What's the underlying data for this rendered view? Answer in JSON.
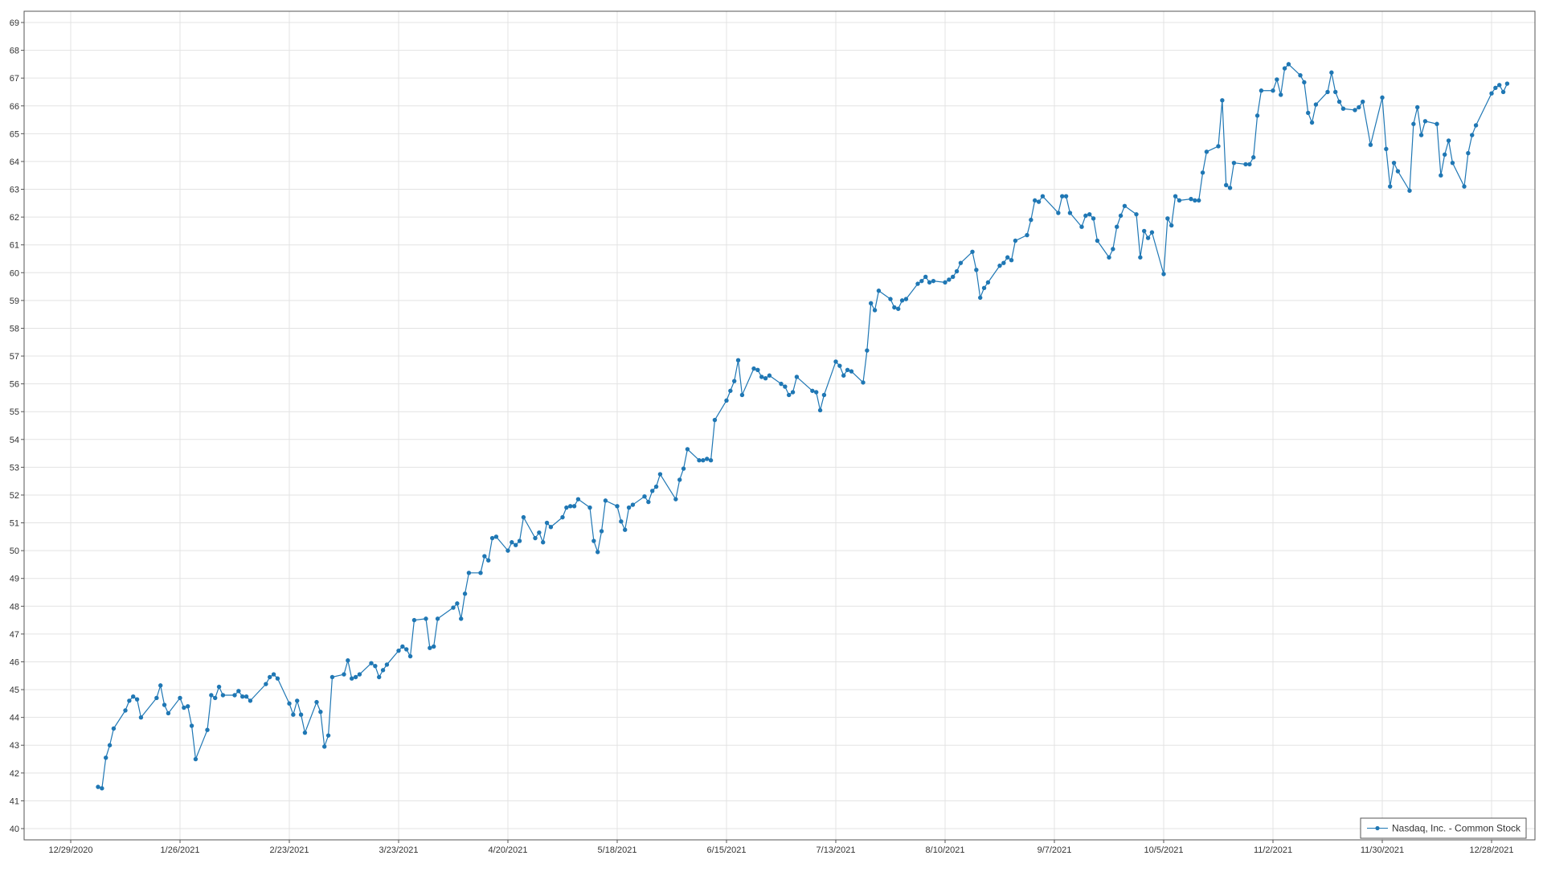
{
  "chart_data": {
    "type": "line",
    "title": "",
    "xlabel": "",
    "ylabel": "",
    "ylim": [
      40,
      69
    ],
    "xlim": [
      "2020-12-29",
      "2022-01-04"
    ],
    "y_ticks": [
      "40",
      "41",
      "42",
      "43",
      "44",
      "45",
      "46",
      "47",
      "48",
      "49",
      "50",
      "51",
      "52",
      "53",
      "54",
      "55",
      "56",
      "57",
      "58",
      "59",
      "60",
      "61",
      "62",
      "63",
      "64",
      "65",
      "66",
      "67",
      "68",
      "69"
    ],
    "x_ticks": [
      {
        "date": "2020-12-29",
        "label": "12/29/2020"
      },
      {
        "date": "2021-01-26",
        "label": "1/26/2021"
      },
      {
        "date": "2021-02-23",
        "label": "2/23/2021"
      },
      {
        "date": "2021-03-23",
        "label": "3/23/2021"
      },
      {
        "date": "2021-04-20",
        "label": "4/20/2021"
      },
      {
        "date": "2021-05-18",
        "label": "5/18/2021"
      },
      {
        "date": "2021-06-15",
        "label": "6/15/2021"
      },
      {
        "date": "2021-07-13",
        "label": "7/13/2021"
      },
      {
        "date": "2021-08-10",
        "label": "8/10/2021"
      },
      {
        "date": "2021-09-07",
        "label": "9/7/2021"
      },
      {
        "date": "2021-10-05",
        "label": "10/5/2021"
      },
      {
        "date": "2021-11-02",
        "label": "11/2/2021"
      },
      {
        "date": "2021-11-30",
        "label": "11/30/2021"
      },
      {
        "date": "2021-12-28",
        "label": "12/28/2021"
      }
    ],
    "grid": true,
    "legend_position": "bottom-right",
    "series": [
      {
        "name": "Nasdaq, Inc. - Common Stock",
        "color": "#1f77b4",
        "points": [
          [
            "2021-01-05",
            41.5
          ],
          [
            "2021-01-06",
            41.45
          ],
          [
            "2021-01-07",
            42.55
          ],
          [
            "2021-01-08",
            43.0
          ],
          [
            "2021-01-09",
            43.6
          ],
          [
            "2021-01-12",
            44.25
          ],
          [
            "2021-01-13",
            44.6
          ],
          [
            "2021-01-14",
            44.75
          ],
          [
            "2021-01-15",
            44.65
          ],
          [
            "2021-01-16",
            44.0
          ],
          [
            "2021-01-20",
            44.7
          ],
          [
            "2021-01-21",
            45.15
          ],
          [
            "2021-01-22",
            44.45
          ],
          [
            "2021-01-23",
            44.15
          ],
          [
            "2021-01-26",
            44.7
          ],
          [
            "2021-01-27",
            44.35
          ],
          [
            "2021-01-28",
            44.4
          ],
          [
            "2021-01-29",
            43.7
          ],
          [
            "2021-01-30",
            42.5
          ],
          [
            "2021-02-02",
            43.55
          ],
          [
            "2021-02-03",
            44.8
          ],
          [
            "2021-02-04",
            44.7
          ],
          [
            "2021-02-05",
            45.1
          ],
          [
            "2021-02-06",
            44.8
          ],
          [
            "2021-02-09",
            44.8
          ],
          [
            "2021-02-10",
            44.95
          ],
          [
            "2021-02-11",
            44.75
          ],
          [
            "2021-02-12",
            44.75
          ],
          [
            "2021-02-13",
            44.6
          ],
          [
            "2021-02-17",
            45.2
          ],
          [
            "2021-02-18",
            45.45
          ],
          [
            "2021-02-19",
            45.55
          ],
          [
            "2021-02-20",
            45.4
          ],
          [
            "2021-02-23",
            44.5
          ],
          [
            "2021-02-24",
            44.1
          ],
          [
            "2021-02-25",
            44.6
          ],
          [
            "2021-02-26",
            44.1
          ],
          [
            "2021-02-27",
            43.45
          ],
          [
            "2021-03-02",
            44.55
          ],
          [
            "2021-03-03",
            44.2
          ],
          [
            "2021-03-04",
            42.95
          ],
          [
            "2021-03-05",
            43.35
          ],
          [
            "2021-03-06",
            45.45
          ],
          [
            "2021-03-09",
            45.55
          ],
          [
            "2021-03-10",
            46.05
          ],
          [
            "2021-03-11",
            45.4
          ],
          [
            "2021-03-12",
            45.45
          ],
          [
            "2021-03-13",
            45.55
          ],
          [
            "2021-03-16",
            45.95
          ],
          [
            "2021-03-17",
            45.85
          ],
          [
            "2021-03-18",
            45.45
          ],
          [
            "2021-03-19",
            45.7
          ],
          [
            "2021-03-20",
            45.9
          ],
          [
            "2021-03-23",
            46.4
          ],
          [
            "2021-03-24",
            46.55
          ],
          [
            "2021-03-25",
            46.45
          ],
          [
            "2021-03-26",
            46.2
          ],
          [
            "2021-03-27",
            47.5
          ],
          [
            "2021-03-30",
            47.55
          ],
          [
            "2021-03-31",
            46.5
          ],
          [
            "2021-04-01",
            46.55
          ],
          [
            "2021-04-02",
            47.55
          ],
          [
            "2021-04-06",
            47.95
          ],
          [
            "2021-04-07",
            48.1
          ],
          [
            "2021-04-08",
            47.55
          ],
          [
            "2021-04-09",
            48.45
          ],
          [
            "2021-04-10",
            49.2
          ],
          [
            "2021-04-13",
            49.2
          ],
          [
            "2021-04-14",
            49.8
          ],
          [
            "2021-04-15",
            49.65
          ],
          [
            "2021-04-16",
            50.45
          ],
          [
            "2021-04-17",
            50.5
          ],
          [
            "2021-04-20",
            50.0
          ],
          [
            "2021-04-21",
            50.3
          ],
          [
            "2021-04-22",
            50.2
          ],
          [
            "2021-04-23",
            50.35
          ],
          [
            "2021-04-24",
            51.2
          ],
          [
            "2021-04-27",
            50.45
          ],
          [
            "2021-04-28",
            50.65
          ],
          [
            "2021-04-29",
            50.3
          ],
          [
            "2021-04-30",
            51.0
          ],
          [
            "2021-05-01",
            50.85
          ],
          [
            "2021-05-04",
            51.2
          ],
          [
            "2021-05-05",
            51.55
          ],
          [
            "2021-05-06",
            51.6
          ],
          [
            "2021-05-07",
            51.6
          ],
          [
            "2021-05-08",
            51.85
          ],
          [
            "2021-05-11",
            51.55
          ],
          [
            "2021-05-12",
            50.35
          ],
          [
            "2021-05-13",
            49.95
          ],
          [
            "2021-05-14",
            50.7
          ],
          [
            "2021-05-15",
            51.8
          ],
          [
            "2021-05-18",
            51.6
          ],
          [
            "2021-05-19",
            51.05
          ],
          [
            "2021-05-20",
            50.75
          ],
          [
            "2021-05-21",
            51.55
          ],
          [
            "2021-05-22",
            51.65
          ],
          [
            "2021-05-25",
            51.95
          ],
          [
            "2021-05-26",
            51.75
          ],
          [
            "2021-05-27",
            52.15
          ],
          [
            "2021-05-28",
            52.3
          ],
          [
            "2021-05-29",
            52.75
          ],
          [
            "2021-06-02",
            51.85
          ],
          [
            "2021-06-03",
            52.55
          ],
          [
            "2021-06-04",
            52.95
          ],
          [
            "2021-06-05",
            53.65
          ],
          [
            "2021-06-08",
            53.25
          ],
          [
            "2021-06-09",
            53.25
          ],
          [
            "2021-06-10",
            53.3
          ],
          [
            "2021-06-11",
            53.25
          ],
          [
            "2021-06-12",
            54.7
          ],
          [
            "2021-06-15",
            55.4
          ],
          [
            "2021-06-16",
            55.75
          ],
          [
            "2021-06-17",
            56.1
          ],
          [
            "2021-06-18",
            56.85
          ],
          [
            "2021-06-19",
            55.6
          ],
          [
            "2021-06-22",
            56.55
          ],
          [
            "2021-06-23",
            56.5
          ],
          [
            "2021-06-24",
            56.25
          ],
          [
            "2021-06-25",
            56.2
          ],
          [
            "2021-06-26",
            56.3
          ],
          [
            "2021-06-29",
            56.0
          ],
          [
            "2021-06-30",
            55.9
          ],
          [
            "2021-07-01",
            55.6
          ],
          [
            "2021-07-02",
            55.7
          ],
          [
            "2021-07-03",
            56.25
          ],
          [
            "2021-07-07",
            55.75
          ],
          [
            "2021-07-08",
            55.7
          ],
          [
            "2021-07-09",
            55.05
          ],
          [
            "2021-07-10",
            55.6
          ],
          [
            "2021-07-13",
            56.8
          ],
          [
            "2021-07-14",
            56.65
          ],
          [
            "2021-07-15",
            56.3
          ],
          [
            "2021-07-16",
            56.5
          ],
          [
            "2021-07-17",
            56.45
          ],
          [
            "2021-07-20",
            56.05
          ],
          [
            "2021-07-21",
            57.2
          ],
          [
            "2021-07-22",
            58.9
          ],
          [
            "2021-07-23",
            58.65
          ],
          [
            "2021-07-24",
            59.35
          ],
          [
            "2021-07-27",
            59.05
          ],
          [
            "2021-07-28",
            58.75
          ],
          [
            "2021-07-29",
            58.7
          ],
          [
            "2021-07-30",
            59.0
          ],
          [
            "2021-07-31",
            59.05
          ],
          [
            "2021-08-03",
            59.6
          ],
          [
            "2021-08-04",
            59.7
          ],
          [
            "2021-08-05",
            59.85
          ],
          [
            "2021-08-06",
            59.65
          ],
          [
            "2021-08-07",
            59.7
          ],
          [
            "2021-08-10",
            59.65
          ],
          [
            "2021-08-11",
            59.75
          ],
          [
            "2021-08-12",
            59.85
          ],
          [
            "2021-08-13",
            60.05
          ],
          [
            "2021-08-14",
            60.35
          ],
          [
            "2021-08-17",
            60.75
          ],
          [
            "2021-08-18",
            60.1
          ],
          [
            "2021-08-19",
            59.1
          ],
          [
            "2021-08-20",
            59.45
          ],
          [
            "2021-08-21",
            59.65
          ],
          [
            "2021-08-24",
            60.25
          ],
          [
            "2021-08-25",
            60.35
          ],
          [
            "2021-08-26",
            60.55
          ],
          [
            "2021-08-27",
            60.45
          ],
          [
            "2021-08-28",
            61.15
          ],
          [
            "2021-08-31",
            61.35
          ],
          [
            "2021-09-01",
            61.9
          ],
          [
            "2021-09-02",
            62.6
          ],
          [
            "2021-09-03",
            62.55
          ],
          [
            "2021-09-04",
            62.75
          ],
          [
            "2021-09-08",
            62.15
          ],
          [
            "2021-09-09",
            62.75
          ],
          [
            "2021-09-10",
            62.75
          ],
          [
            "2021-09-11",
            62.15
          ],
          [
            "2021-09-14",
            61.65
          ],
          [
            "2021-09-15",
            62.05
          ],
          [
            "2021-09-16",
            62.1
          ],
          [
            "2021-09-17",
            61.95
          ],
          [
            "2021-09-18",
            61.15
          ],
          [
            "2021-09-21",
            60.55
          ],
          [
            "2021-09-22",
            60.85
          ],
          [
            "2021-09-23",
            61.65
          ],
          [
            "2021-09-24",
            62.05
          ],
          [
            "2021-09-25",
            62.4
          ],
          [
            "2021-09-28",
            62.1
          ],
          [
            "2021-09-29",
            60.55
          ],
          [
            "2021-09-30",
            61.5
          ],
          [
            "2021-10-01",
            61.25
          ],
          [
            "2021-10-02",
            61.45
          ],
          [
            "2021-10-05",
            59.95
          ],
          [
            "2021-10-06",
            61.95
          ],
          [
            "2021-10-07",
            61.7
          ],
          [
            "2021-10-08",
            62.75
          ],
          [
            "2021-10-09",
            62.6
          ],
          [
            "2021-10-12",
            62.65
          ],
          [
            "2021-10-13",
            62.6
          ],
          [
            "2021-10-14",
            62.6
          ],
          [
            "2021-10-15",
            63.6
          ],
          [
            "2021-10-16",
            64.35
          ],
          [
            "2021-10-19",
            64.55
          ],
          [
            "2021-10-20",
            66.2
          ],
          [
            "2021-10-21",
            63.15
          ],
          [
            "2021-10-22",
            63.05
          ],
          [
            "2021-10-23",
            63.95
          ],
          [
            "2021-10-26",
            63.9
          ],
          [
            "2021-10-27",
            63.9
          ],
          [
            "2021-10-28",
            64.15
          ],
          [
            "2021-10-29",
            65.65
          ],
          [
            "2021-10-30",
            66.55
          ],
          [
            "2021-11-02",
            66.55
          ],
          [
            "2021-11-03",
            66.95
          ],
          [
            "2021-11-04",
            66.4
          ],
          [
            "2021-11-05",
            67.35
          ],
          [
            "2021-11-06",
            67.5
          ],
          [
            "2021-11-09",
            67.1
          ],
          [
            "2021-11-10",
            66.85
          ],
          [
            "2021-11-11",
            65.75
          ],
          [
            "2021-11-12",
            65.4
          ],
          [
            "2021-11-13",
            66.05
          ],
          [
            "2021-11-16",
            66.5
          ],
          [
            "2021-11-17",
            67.2
          ],
          [
            "2021-11-18",
            66.5
          ],
          [
            "2021-11-19",
            66.15
          ],
          [
            "2021-11-20",
            65.9
          ],
          [
            "2021-11-23",
            65.85
          ],
          [
            "2021-11-24",
            65.95
          ],
          [
            "2021-11-25",
            66.15
          ],
          [
            "2021-11-27",
            64.6
          ],
          [
            "2021-11-30",
            66.3
          ],
          [
            "2021-12-01",
            64.45
          ],
          [
            "2021-12-02",
            63.1
          ],
          [
            "2021-12-03",
            63.95
          ],
          [
            "2021-12-04",
            63.65
          ],
          [
            "2021-12-07",
            62.95
          ],
          [
            "2021-12-08",
            65.35
          ],
          [
            "2021-12-09",
            65.95
          ],
          [
            "2021-12-10",
            64.95
          ],
          [
            "2021-12-11",
            65.45
          ],
          [
            "2021-12-14",
            65.35
          ],
          [
            "2021-12-15",
            63.5
          ],
          [
            "2021-12-16",
            64.25
          ],
          [
            "2021-12-17",
            64.75
          ],
          [
            "2021-12-18",
            63.95
          ],
          [
            "2021-12-21",
            63.1
          ],
          [
            "2021-12-22",
            64.3
          ],
          [
            "2021-12-23",
            64.95
          ],
          [
            "2021-12-24",
            65.3
          ],
          [
            "2021-12-28",
            66.45
          ],
          [
            "2021-12-29",
            66.65
          ],
          [
            "2021-12-30",
            66.75
          ],
          [
            "2021-12-31",
            66.5
          ],
          [
            "2022-01-01",
            66.8
          ]
        ]
      }
    ]
  }
}
